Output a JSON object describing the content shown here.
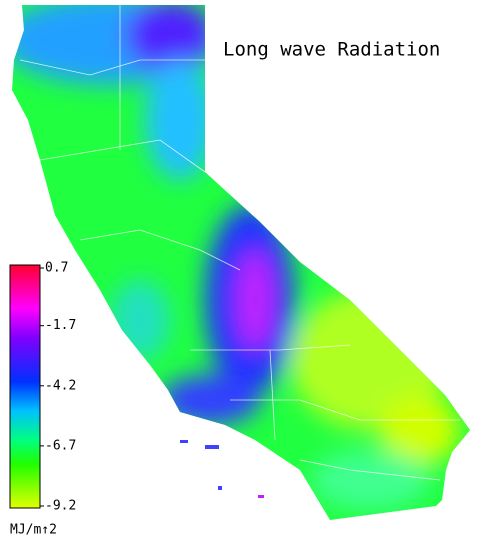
{
  "title": "Long wave Radiation",
  "colorbar": {
    "ticks": [
      0.7,
      -1.7,
      -4.2,
      -6.7,
      -9.2
    ],
    "unit": "MJ/m↑2"
  }
}
